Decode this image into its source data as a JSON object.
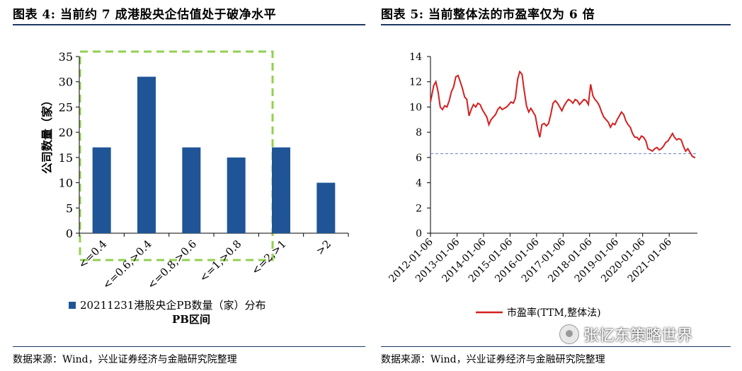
{
  "left": {
    "title": "图表 4:  当前约 7 成港股央企估值处于破净水平",
    "source": "数据来源：Wind，兴业证券经济与金融研究院整理"
  },
  "right": {
    "title": "图表 5:  当前整体法的市盈率仅为 6 倍",
    "source": "数据来源：Wind，兴业证券经济与金融研究院整理"
  },
  "watermark": "张忆东策略世界",
  "colors": {
    "bar": "#1f5597",
    "line": "#d32020",
    "dashed": "#6f7ed8",
    "highlight_box": "#92d050",
    "rule": "#1f3864"
  },
  "chart_data": [
    {
      "type": "bar",
      "categories": [
        "<=0.4",
        "<=0.6,>0.4",
        "<=0.8,>0.6",
        "<=1,>0.8",
        "<=2,>1",
        ">2"
      ],
      "series": [
        {
          "name": "20211231港股央企PB数量（家）分布",
          "values": [
            17,
            31,
            17,
            15,
            17,
            10
          ]
        }
      ],
      "xlabel": "PB区间",
      "ylabel": "公司数量（家）",
      "ylim": [
        0,
        35
      ],
      "yticks": [
        0,
        5,
        10,
        15,
        20,
        25,
        30,
        35
      ],
      "grid": false,
      "legend": "bottom",
      "annotation": "dashed green box highlighting the first four categories (PB <= 1)"
    },
    {
      "type": "line",
      "xlabel": "",
      "ylabel": "",
      "ylim": [
        0,
        14
      ],
      "yticks": [
        0,
        2,
        4,
        6,
        8,
        10,
        12,
        14
      ],
      "xticks": [
        "2012-01-06",
        "2013-01-06",
        "2014-01-06",
        "2015-01-06",
        "2016-01-06",
        "2017-01-06",
        "2018-01-06",
        "2019-01-06",
        "2020-01-06",
        "2021-01-06"
      ],
      "series": [
        {
          "name": "市盈率(TTM,整体法)",
          "points": [
            [
              "2012-01-06",
              10.4
            ],
            [
              "2012-02-20",
              11.7
            ],
            [
              "2012-03-20",
              12.0
            ],
            [
              "2012-04-20",
              11.2
            ],
            [
              "2012-05-20",
              10.0
            ],
            [
              "2012-06-20",
              9.8
            ],
            [
              "2012-07-20",
              10.1
            ],
            [
              "2012-08-20",
              10.0
            ],
            [
              "2012-09-20",
              10.5
            ],
            [
              "2012-10-20",
              11.2
            ],
            [
              "2012-11-20",
              11.6
            ],
            [
              "2012-12-20",
              12.4
            ],
            [
              "2013-01-20",
              12.5
            ],
            [
              "2013-02-20",
              12.0
            ],
            [
              "2013-03-20",
              11.5
            ],
            [
              "2013-04-20",
              10.8
            ],
            [
              "2013-05-20",
              10.6
            ],
            [
              "2013-06-20",
              9.3
            ],
            [
              "2013-07-20",
              9.8
            ],
            [
              "2013-08-20",
              10.2
            ],
            [
              "2013-09-20",
              10.0
            ],
            [
              "2013-10-20",
              10.3
            ],
            [
              "2013-11-20",
              10.2
            ],
            [
              "2013-12-20",
              9.8
            ],
            [
              "2014-01-20",
              9.5
            ],
            [
              "2014-02-20",
              9.2
            ],
            [
              "2014-03-20",
              8.6
            ],
            [
              "2014-04-20",
              9.0
            ],
            [
              "2014-05-20",
              9.2
            ],
            [
              "2014-06-20",
              9.4
            ],
            [
              "2014-07-20",
              9.8
            ],
            [
              "2014-08-20",
              10.0
            ],
            [
              "2014-09-20",
              9.8
            ],
            [
              "2014-10-20",
              9.9
            ],
            [
              "2014-11-20",
              10.0
            ],
            [
              "2014-12-20",
              10.2
            ],
            [
              "2015-01-20",
              10.4
            ],
            [
              "2015-02-20",
              10.3
            ],
            [
              "2015-03-20",
              10.7
            ],
            [
              "2015-04-20",
              12.2
            ],
            [
              "2015-05-20",
              12.8
            ],
            [
              "2015-06-20",
              12.6
            ],
            [
              "2015-07-20",
              11.3
            ],
            [
              "2015-08-20",
              10.1
            ],
            [
              "2015-09-20",
              9.6
            ],
            [
              "2015-10-20",
              9.9
            ],
            [
              "2015-11-20",
              9.6
            ],
            [
              "2015-12-20",
              9.3
            ],
            [
              "2016-01-20",
              8.3
            ],
            [
              "2016-02-20",
              7.6
            ],
            [
              "2016-03-20",
              8.6
            ],
            [
              "2016-04-20",
              8.7
            ],
            [
              "2016-05-20",
              8.5
            ],
            [
              "2016-06-20",
              8.7
            ],
            [
              "2016-07-20",
              9.4
            ],
            [
              "2016-08-20",
              10.3
            ],
            [
              "2016-09-20",
              10.5
            ],
            [
              "2016-10-20",
              10.3
            ],
            [
              "2016-11-20",
              10.0
            ],
            [
              "2016-12-20",
              9.7
            ],
            [
              "2017-01-20",
              10.1
            ],
            [
              "2017-02-20",
              10.4
            ],
            [
              "2017-03-20",
              10.6
            ],
            [
              "2017-04-20",
              10.5
            ],
            [
              "2017-05-20",
              10.3
            ],
            [
              "2017-06-20",
              10.6
            ],
            [
              "2017-07-20",
              10.5
            ],
            [
              "2017-08-20",
              10.2
            ],
            [
              "2017-09-20",
              10.4
            ],
            [
              "2017-10-20",
              10.6
            ],
            [
              "2017-11-20",
              10.5
            ],
            [
              "2017-12-20",
              10.2
            ],
            [
              "2018-01-20",
              11.8
            ],
            [
              "2018-02-20",
              10.9
            ],
            [
              "2018-03-20",
              10.6
            ],
            [
              "2018-04-20",
              10.4
            ],
            [
              "2018-05-20",
              10.1
            ],
            [
              "2018-06-20",
              9.6
            ],
            [
              "2018-07-20",
              9.2
            ],
            [
              "2018-08-20",
              9.0
            ],
            [
              "2018-09-20",
              8.8
            ],
            [
              "2018-10-20",
              8.4
            ],
            [
              "2018-11-20",
              8.7
            ],
            [
              "2018-12-20",
              8.6
            ],
            [
              "2019-01-20",
              9.0
            ],
            [
              "2019-02-20",
              9.3
            ],
            [
              "2019-03-20",
              9.6
            ],
            [
              "2019-04-20",
              9.4
            ],
            [
              "2019-05-20",
              8.9
            ],
            [
              "2019-06-20",
              8.6
            ],
            [
              "2019-07-20",
              8.4
            ],
            [
              "2019-08-20",
              7.9
            ],
            [
              "2019-09-20",
              7.6
            ],
            [
              "2019-10-20",
              7.6
            ],
            [
              "2019-11-20",
              7.4
            ],
            [
              "2019-12-20",
              7.7
            ],
            [
              "2020-01-20",
              7.6
            ],
            [
              "2020-02-20",
              7.3
            ],
            [
              "2020-03-20",
              6.7
            ],
            [
              "2020-04-20",
              6.6
            ],
            [
              "2020-05-20",
              6.5
            ],
            [
              "2020-06-20",
              6.7
            ],
            [
              "2020-07-20",
              6.8
            ],
            [
              "2020-08-20",
              6.6
            ],
            [
              "2020-09-20",
              6.7
            ],
            [
              "2020-10-20",
              6.9
            ],
            [
              "2020-11-20",
              7.2
            ],
            [
              "2020-12-20",
              7.3
            ],
            [
              "2021-01-20",
              7.6
            ],
            [
              "2021-02-20",
              7.9
            ],
            [
              "2021-03-20",
              7.6
            ],
            [
              "2021-04-20",
              7.4
            ],
            [
              "2021-05-20",
              7.5
            ],
            [
              "2021-06-20",
              7.4
            ],
            [
              "2021-07-20",
              6.9
            ],
            [
              "2021-08-20",
              6.5
            ],
            [
              "2021-09-20",
              6.7
            ],
            [
              "2021-10-20",
              6.4
            ],
            [
              "2021-11-20",
              6.1
            ],
            [
              "2021-12-20",
              6.0
            ],
            [
              "2021-12-31",
              6.0
            ]
          ]
        }
      ],
      "reference_line": {
        "y": 6.3,
        "style": "dashed"
      },
      "x_range": [
        "2012-01-06",
        "2021-12-31"
      ],
      "grid": false,
      "legend": "bottom"
    }
  ]
}
